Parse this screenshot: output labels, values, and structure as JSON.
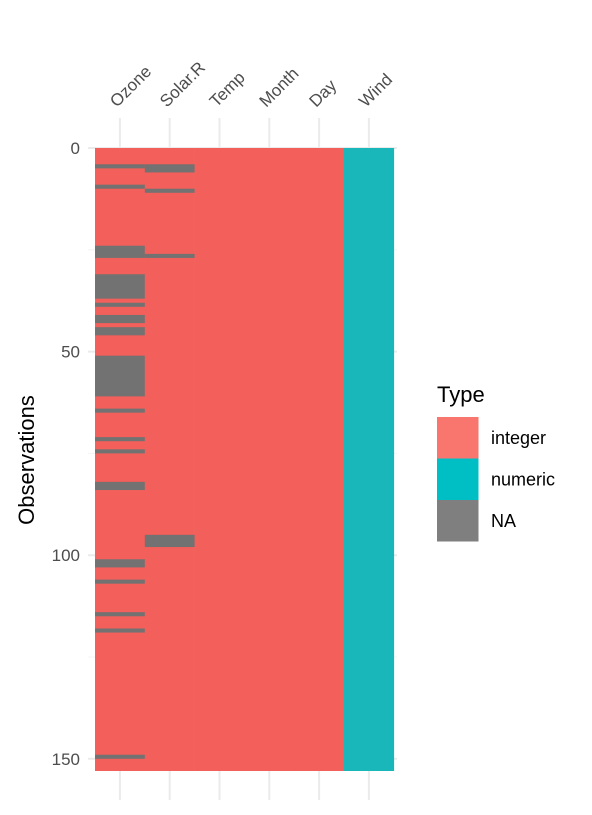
{
  "chart_data": {
    "type": "heatmap",
    "title": "",
    "xlabel": "",
    "ylabel": "Observations",
    "columns": [
      {
        "name": "Ozone",
        "type": "integer"
      },
      {
        "name": "Solar.R",
        "type": "integer"
      },
      {
        "name": "Temp",
        "type": "integer"
      },
      {
        "name": "Month",
        "type": "integer"
      },
      {
        "name": "Day",
        "type": "integer"
      },
      {
        "name": "Wind",
        "type": "numeric"
      }
    ],
    "n_rows": 153,
    "y_ticks": [
      0,
      50,
      100,
      150
    ],
    "ylim": [
      0,
      153
    ],
    "y_reversed": true,
    "grid": true,
    "legend": {
      "title": "Type",
      "position": "right",
      "entries": [
        {
          "label": "integer",
          "color": "#F8766D"
        },
        {
          "label": "numeric",
          "color": "#00BFC4"
        },
        {
          "label": "NA",
          "color": "#7F7F7F"
        }
      ]
    },
    "colors": {
      "integer": "#F35F5A",
      "numeric": "#19B6BA",
      "NA": "#727272"
    },
    "missing": {
      "Ozone": [
        5,
        10,
        25,
        26,
        27,
        32,
        33,
        34,
        35,
        36,
        37,
        39,
        42,
        43,
        45,
        46,
        52,
        53,
        54,
        55,
        56,
        57,
        58,
        59,
        60,
        61,
        65,
        72,
        75,
        83,
        84,
        102,
        103,
        107,
        115,
        119,
        150
      ],
      "Solar.R": [
        5,
        6,
        11,
        27,
        96,
        97,
        98
      ]
    }
  }
}
